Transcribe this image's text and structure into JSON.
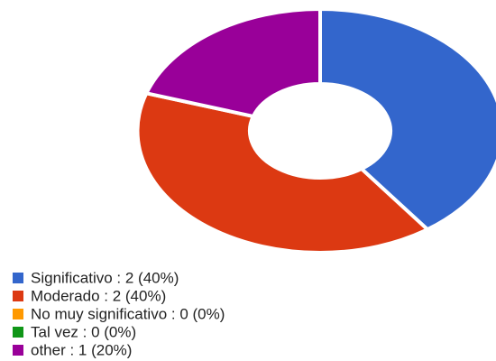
{
  "chart_data": {
    "type": "donut",
    "categories": [
      "Significativo : 2 (40%)",
      "Moderado : 2 (40%)",
      "No muy significativo : 0 (0%)",
      "Tal vez : 0 (0%)",
      "other : 1 (20%)"
    ],
    "values": [
      2,
      2,
      0,
      0,
      1
    ],
    "colors": [
      "#3366cc",
      "#dc3912",
      "#ff9900",
      "#109618",
      "#990099"
    ],
    "legend": "bottom-left"
  }
}
